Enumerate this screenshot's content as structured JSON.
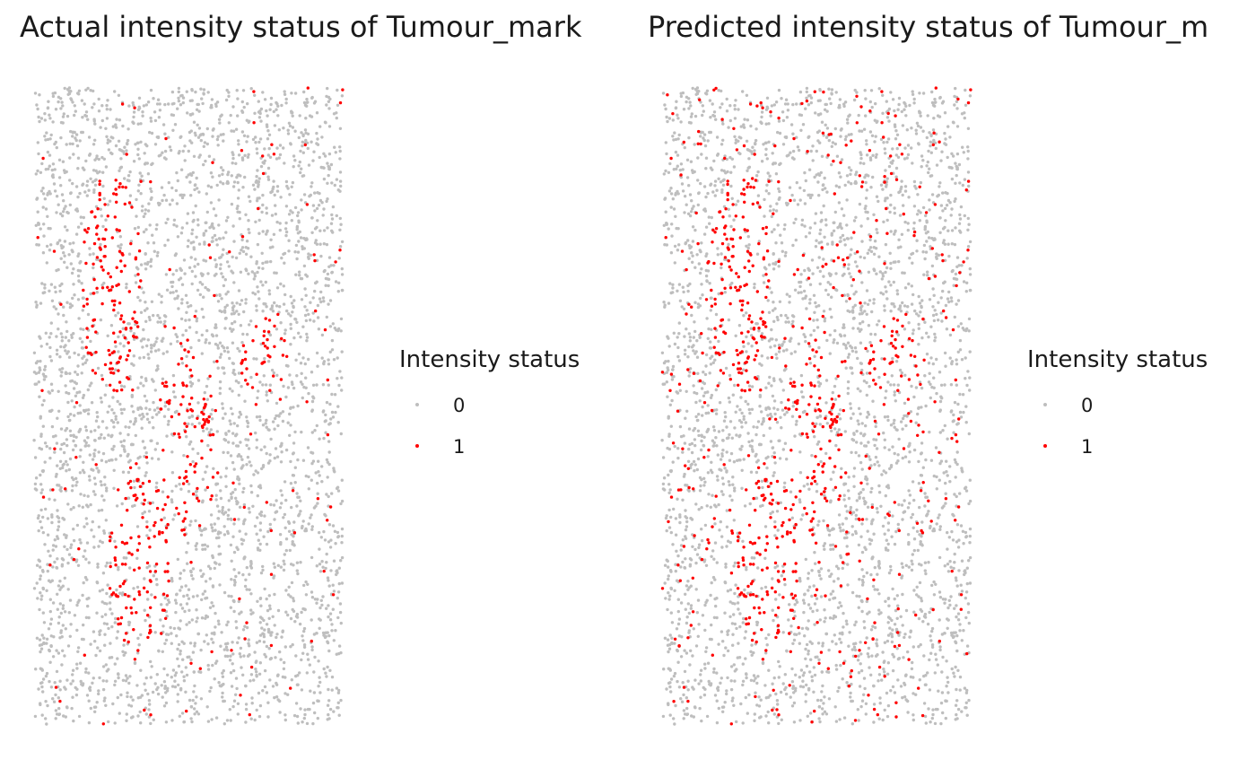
{
  "chart_data": [
    {
      "type": "scatter",
      "title": "Actual intensity status of Tumour_mark",
      "legend": {
        "title": "Intensity status",
        "placement": "right",
        "entries": [
          {
            "label": "0",
            "color": "#bebebe"
          },
          {
            "label": "1",
            "color": "#ff0000"
          }
        ]
      },
      "grid": false,
      "axes_visible": false,
      "xlim": [
        0,
        1
      ],
      "ylim": [
        0,
        1
      ],
      "series": [
        {
          "label": "0",
          "approx_count": 3300,
          "description_note": null
        },
        {
          "label": "1",
          "approx_count": 650
        }
      ],
      "clusters_status_1": [
        {
          "center": [
            0.25,
            0.69
          ],
          "half_width": [
            0.1,
            0.18
          ],
          "density": 0.55
        },
        {
          "center": [
            0.75,
            0.56
          ],
          "half_width": [
            0.08,
            0.08
          ],
          "density": 0.55
        },
        {
          "center": [
            0.5,
            0.45
          ],
          "half_width": [
            0.1,
            0.16
          ],
          "density": 0.55
        },
        {
          "center": [
            0.34,
            0.26
          ],
          "half_width": [
            0.1,
            0.17
          ],
          "density": 0.55
        }
      ],
      "background_status_1_rate": 0.03,
      "seed": 7
    },
    {
      "type": "scatter",
      "title": "Predicted intensity status of Tumour_m",
      "legend": {
        "title": "Intensity status",
        "placement": "right",
        "entries": [
          {
            "label": "0",
            "color": "#bebebe"
          },
          {
            "label": "1",
            "color": "#ff0000"
          }
        ]
      },
      "grid": false,
      "axes_visible": false,
      "xlim": [
        0,
        1
      ],
      "ylim": [
        0,
        1
      ],
      "series": [
        {
          "label": "0",
          "approx_count": 3000
        },
        {
          "label": "1",
          "approx_count": 950
        }
      ],
      "clusters_status_1": [
        {
          "center": [
            0.25,
            0.69
          ],
          "half_width": [
            0.1,
            0.18
          ],
          "density": 0.55
        },
        {
          "center": [
            0.75,
            0.56
          ],
          "half_width": [
            0.08,
            0.08
          ],
          "density": 0.55
        },
        {
          "center": [
            0.5,
            0.45
          ],
          "half_width": [
            0.1,
            0.16
          ],
          "density": 0.55
        },
        {
          "center": [
            0.34,
            0.26
          ],
          "half_width": [
            0.1,
            0.17
          ],
          "density": 0.55
        }
      ],
      "background_status_1_rate": 0.1,
      "seed": 7
    }
  ]
}
